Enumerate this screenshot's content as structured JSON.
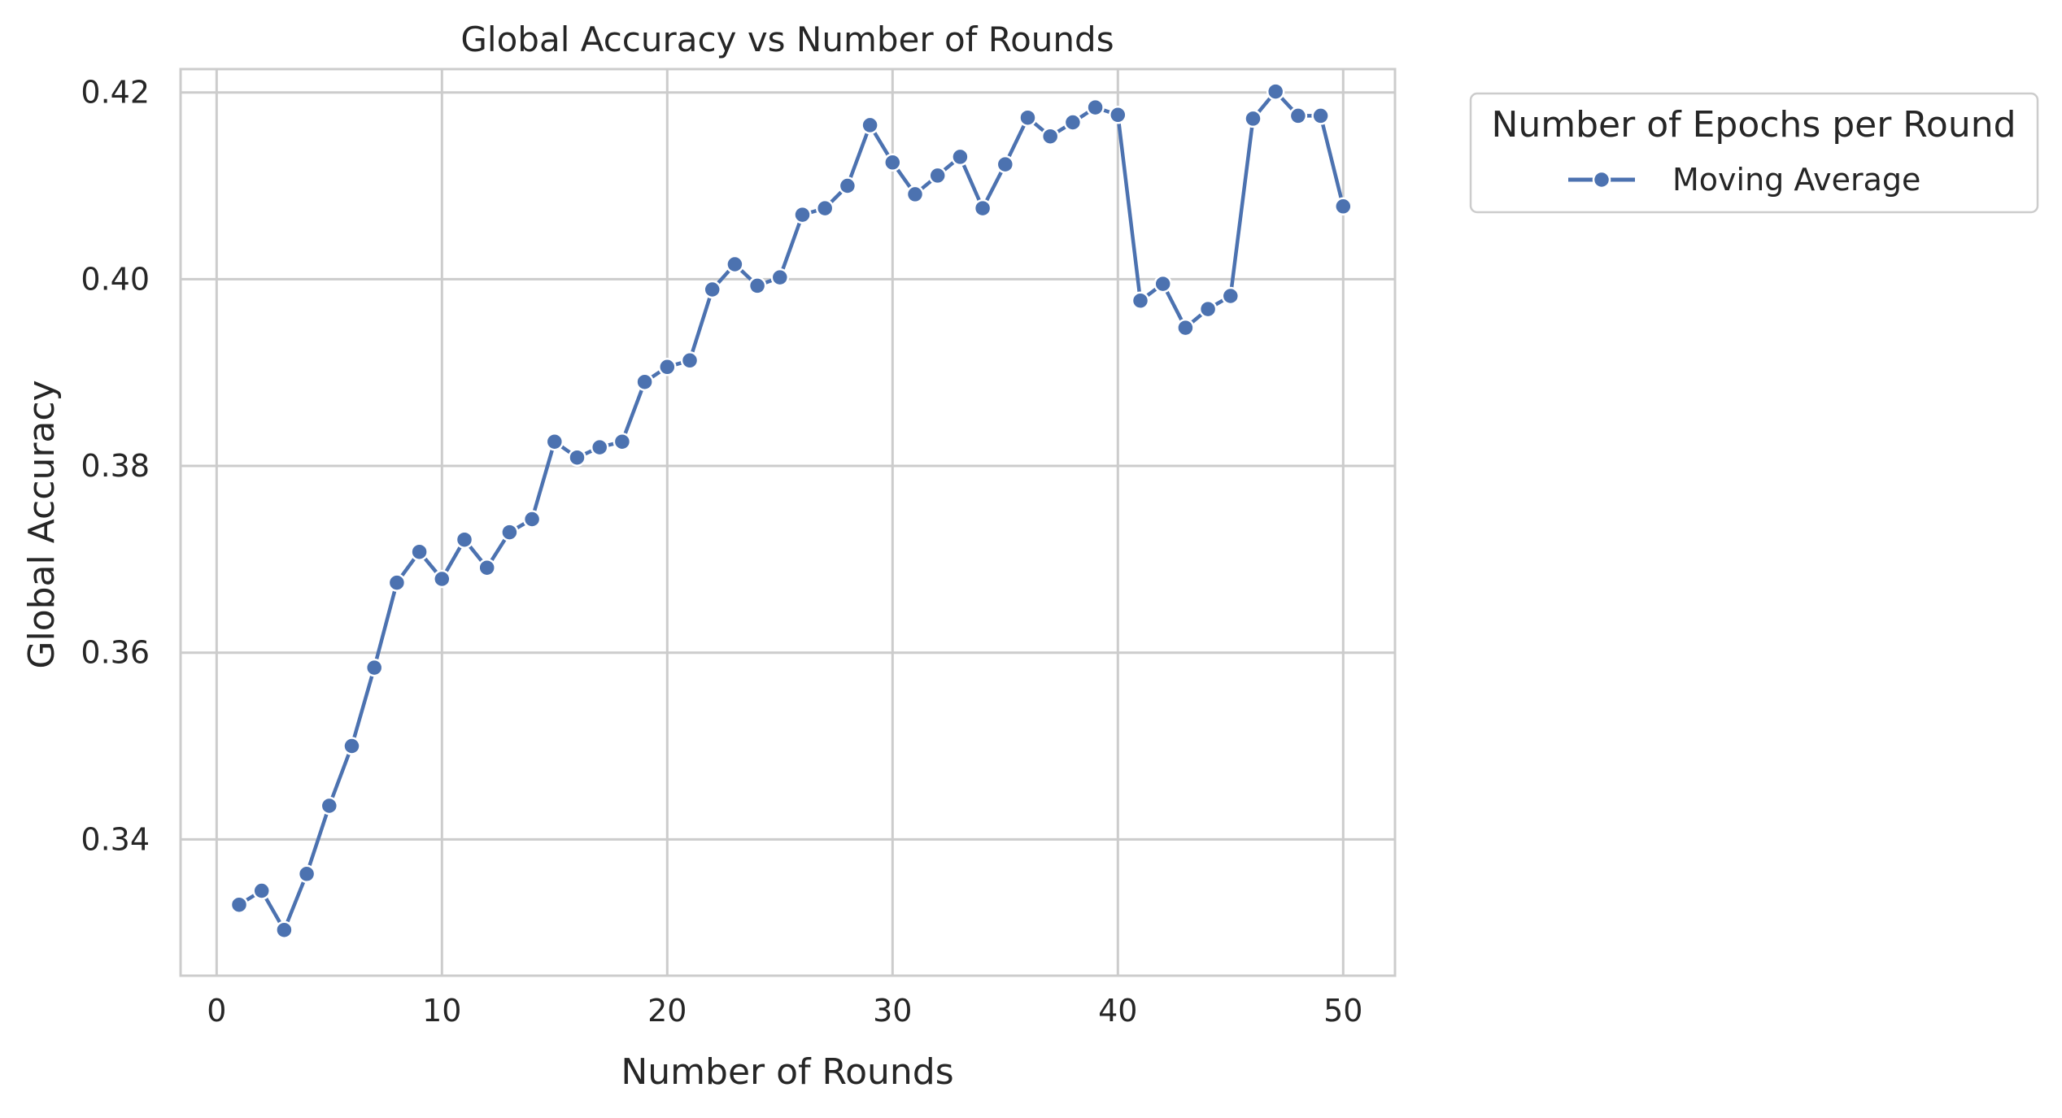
{
  "colors": {
    "line": "#4c72b0",
    "grid": "#cccccc",
    "frame": "#cccccc",
    "text": "#262626",
    "background": "#ffffff"
  },
  "chart_data": {
    "type": "line",
    "title": "Global Accuracy vs Number of Rounds",
    "xlabel": "Number of Rounds",
    "ylabel": "Global Accuracy",
    "xlim": [
      -1.6,
      52.3
    ],
    "ylim": [
      0.3254,
      0.4225
    ],
    "xticks": [
      0,
      10,
      20,
      30,
      40,
      50
    ],
    "xtick_labels": [
      "0",
      "10",
      "20",
      "30",
      "40",
      "50"
    ],
    "yticks": [
      0.34,
      0.36,
      0.38,
      0.4,
      0.42
    ],
    "ytick_labels": [
      "0.34",
      "0.36",
      "0.38",
      "0.40",
      "0.42"
    ],
    "grid": true,
    "legend": {
      "title": "Number of Epochs per Round",
      "placement": "outside-top-right"
    },
    "series": [
      {
        "name": "Moving Average",
        "marker": "circle",
        "x": [
          1,
          2,
          3,
          4,
          5,
          6,
          7,
          8,
          9,
          10,
          11,
          12,
          13,
          14,
          15,
          16,
          17,
          18,
          19,
          20,
          21,
          22,
          23,
          24,
          25,
          26,
          27,
          28,
          29,
          30,
          31,
          32,
          33,
          34,
          35,
          36,
          37,
          38,
          39,
          40,
          41,
          42,
          43,
          44,
          45,
          46,
          47,
          48,
          49,
          50
        ],
        "y": [
          0.333,
          0.3345,
          0.3303,
          0.3363,
          0.3436,
          0.35,
          0.3584,
          0.3675,
          0.3708,
          0.3679,
          0.3721,
          0.3691,
          0.3729,
          0.3743,
          0.3826,
          0.3809,
          0.382,
          0.3826,
          0.389,
          0.3906,
          0.3913,
          0.3989,
          0.4016,
          0.3993,
          0.4002,
          0.4069,
          0.4076,
          0.41,
          0.4165,
          0.4125,
          0.4091,
          0.4111,
          0.4131,
          0.4076,
          0.4123,
          0.4173,
          0.4153,
          0.4168,
          0.4184,
          0.4176,
          0.3977,
          0.3995,
          0.3948,
          0.3968,
          0.3982,
          0.4172,
          0.4201,
          0.4175,
          0.4175,
          0.4078
        ]
      }
    ]
  }
}
